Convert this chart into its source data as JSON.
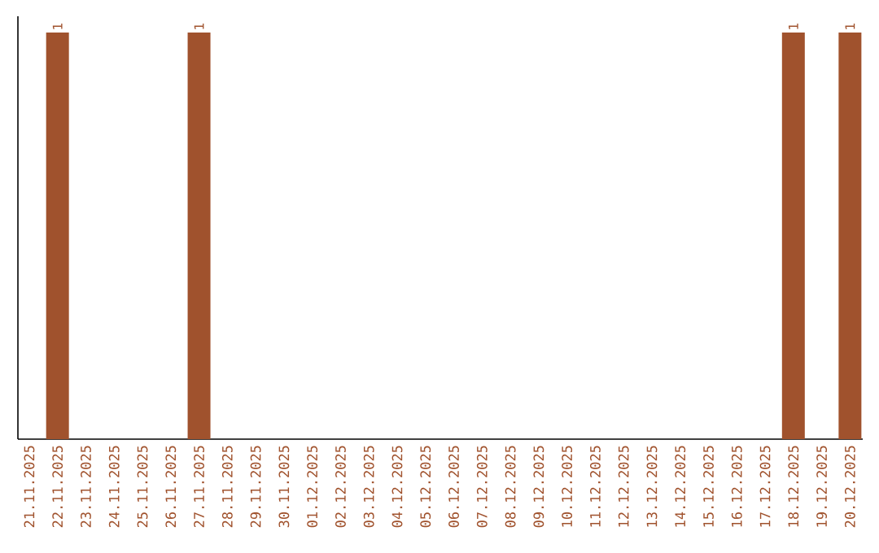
{
  "chart_data": {
    "type": "bar",
    "categories": [
      "21.11.2025",
      "22.11.2025",
      "23.11.2025",
      "24.11.2025",
      "25.11.2025",
      "26.11.2025",
      "27.11.2025",
      "28.11.2025",
      "29.11.2025",
      "30.11.2025",
      "01.12.2025",
      "02.12.2025",
      "03.12.2025",
      "04.12.2025",
      "05.12.2025",
      "06.12.2025",
      "07.12.2025",
      "08.12.2025",
      "09.12.2025",
      "10.12.2025",
      "11.12.2025",
      "12.12.2025",
      "13.12.2025",
      "14.12.2025",
      "15.12.2025",
      "16.12.2025",
      "17.12.2025",
      "18.12.2025",
      "19.12.2025",
      "20.12.2025"
    ],
    "values": [
      null,
      1,
      null,
      null,
      null,
      null,
      1,
      null,
      null,
      null,
      null,
      null,
      null,
      null,
      null,
      null,
      null,
      null,
      null,
      null,
      null,
      null,
      null,
      null,
      null,
      null,
      null,
      1,
      null,
      1
    ],
    "color": "#a0522d",
    "data_labels": true
  }
}
